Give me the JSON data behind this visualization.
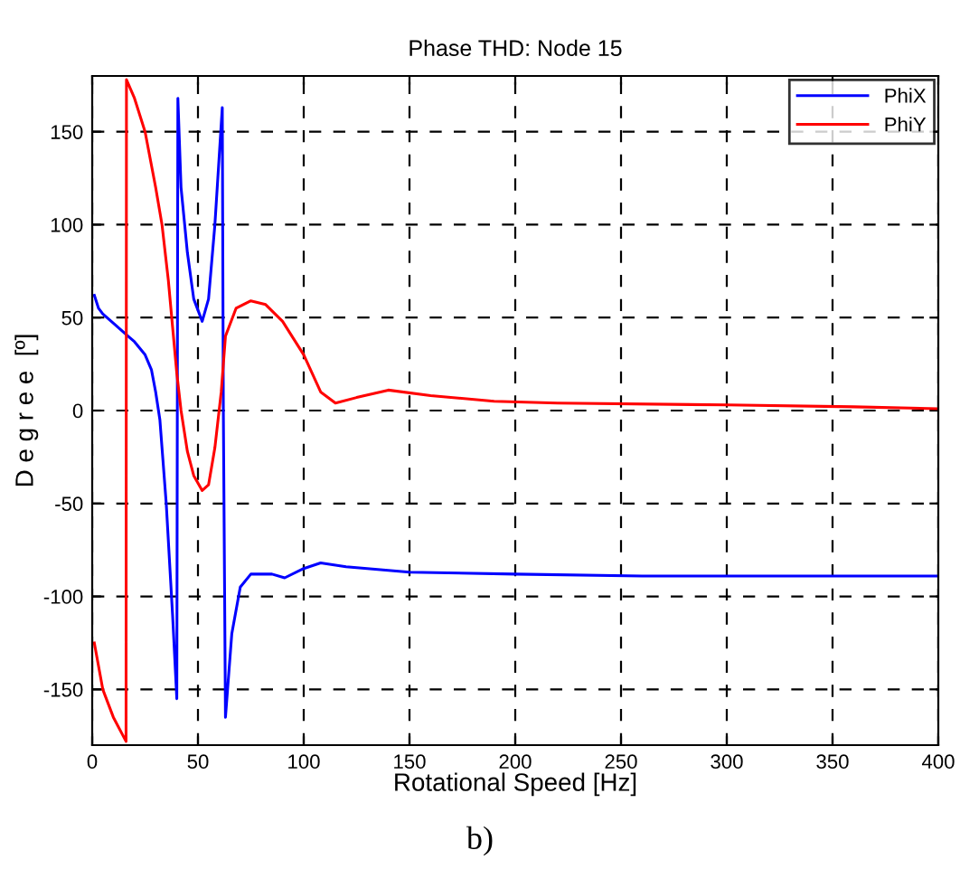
{
  "chart_data": {
    "type": "line",
    "title": "Phase THD: Node 15",
    "xlabel": "Rotational Speed [Hz]",
    "ylabel": "D e g r e e  [º]",
    "annotations": [
      "b)"
    ],
    "xlim": [
      0,
      400
    ],
    "ylim": [
      -180,
      180
    ],
    "xticks": [
      0,
      50,
      100,
      150,
      200,
      250,
      300,
      350,
      400
    ],
    "yticks": [
      -150,
      -100,
      -50,
      0,
      50,
      100,
      150
    ],
    "grid": true,
    "legend": "top right",
    "line_style": "solid",
    "marker": "none",
    "series": [
      {
        "name": "PhiX",
        "color": "#0000ff",
        "x": [
          1,
          3,
          5,
          10,
          17,
          20,
          25,
          28,
          30,
          32,
          35,
          38,
          40,
          40.5,
          42,
          45,
          48,
          52,
          55,
          58,
          61.5,
          62,
          63,
          66,
          70,
          75,
          85,
          91,
          100,
          108,
          120,
          150,
          200,
          260,
          400
        ],
        "values": [
          62,
          55,
          52,
          47,
          40,
          37,
          30,
          22,
          10,
          -5,
          -50,
          -110,
          -155,
          168,
          120,
          85,
          60,
          48,
          60,
          100,
          163,
          0,
          -165,
          -120,
          -95,
          -88,
          -88,
          -90,
          -85,
          -82,
          -84,
          -87,
          -88,
          -89,
          -89
        ]
      },
      {
        "name": "PhiY",
        "color": "#ff0000",
        "x": [
          1,
          5,
          10,
          16,
          16.2,
          20,
          25,
          30,
          33,
          36,
          38,
          40,
          42,
          45,
          48,
          52,
          55,
          58,
          61,
          63,
          68,
          75,
          82,
          90,
          100,
          108,
          115,
          125,
          140,
          160,
          190,
          220,
          300,
          360,
          400
        ],
        "values": [
          -125,
          -150,
          -165,
          -178,
          178,
          168,
          150,
          120,
          100,
          70,
          45,
          20,
          0,
          -22,
          -35,
          -43,
          -40,
          -20,
          10,
          40,
          55,
          59,
          57,
          48,
          30,
          10,
          4,
          7,
          11,
          8,
          5,
          4,
          3,
          2,
          1
        ]
      }
    ]
  }
}
